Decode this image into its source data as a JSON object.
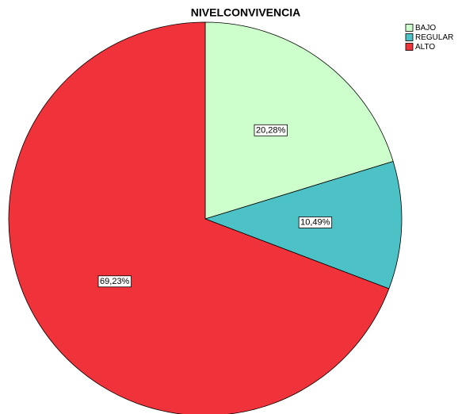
{
  "chart_data": {
    "type": "pie",
    "title": "NIVELCONVIVENCIA",
    "categories": [
      "BAJO",
      "REGULAR",
      "ALTO"
    ],
    "values": [
      20.28,
      10.49,
      69.23
    ],
    "value_labels": [
      "20,28%",
      "10,49%",
      "69,23%"
    ],
    "colors": [
      "#ccffcc",
      "#4cc2c6",
      "#f0323b"
    ],
    "legend": "top-right"
  }
}
